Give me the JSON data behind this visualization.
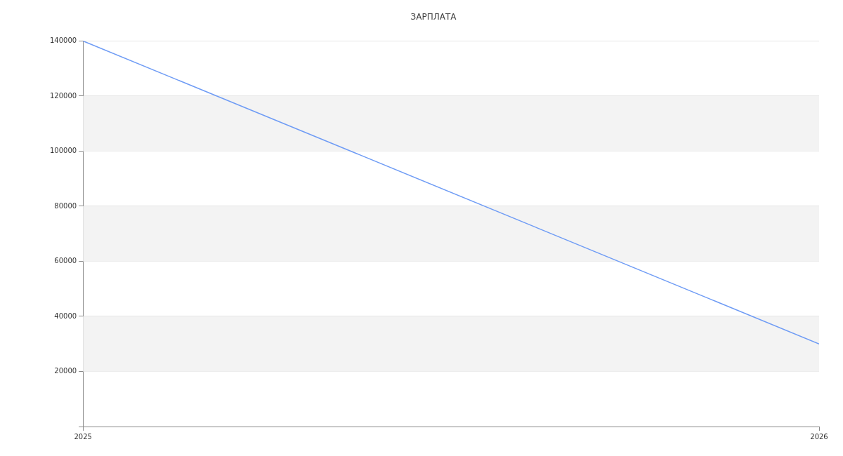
{
  "chart_data": {
    "type": "line",
    "title": "ЗАРПЛАТА",
    "x": [
      "2025",
      "2026"
    ],
    "series": [
      {
        "color": "#6f9cf5",
        "values": [
          140000,
          30000
        ]
      }
    ],
    "xlim": [
      "2025",
      "2026"
    ],
    "xticks": [
      "2025",
      "2026"
    ],
    "ylim": [
      0,
      140000
    ],
    "yticks": [
      {
        "value": 0,
        "label": null
      },
      20000,
      40000,
      60000,
      80000,
      100000,
      120000,
      140000
    ],
    "grid": "y",
    "legend": false,
    "marker": "none",
    "line_style": "solid"
  }
}
